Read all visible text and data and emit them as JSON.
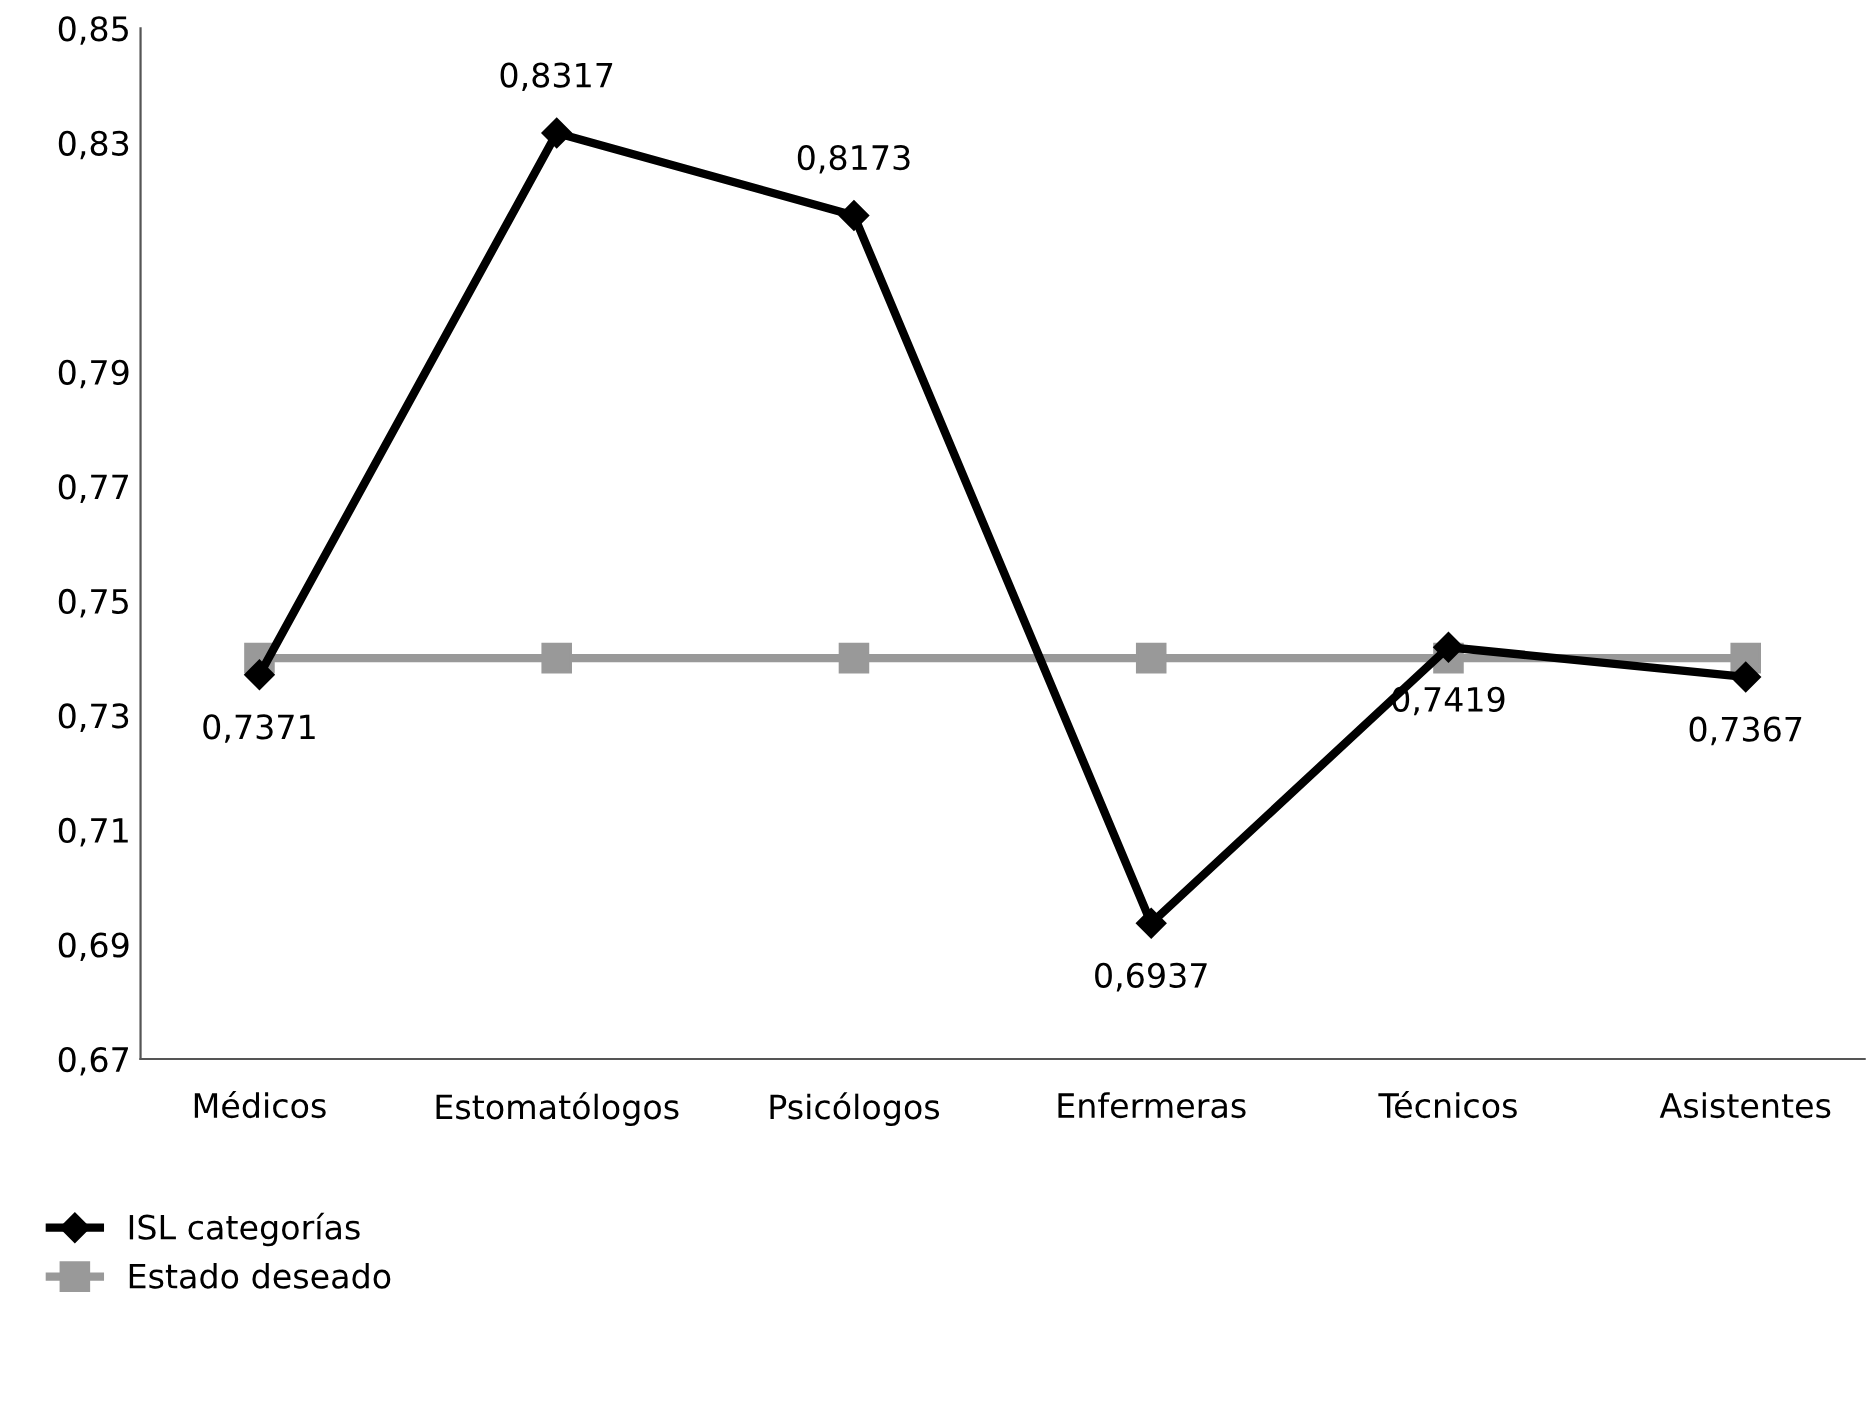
{
  "chart_data": {
    "type": "line",
    "categories": [
      "Médicos",
      "Estomatólogos",
      "Psicólogos",
      "Enfermeras",
      "Técnicos",
      "Asistentes"
    ],
    "series": [
      {
        "name": "ISL categorías",
        "color": "#000000",
        "marker": "diamond",
        "values": [
          0.7371,
          0.8317,
          0.8173,
          0.6937,
          0.7419,
          0.7367
        ],
        "value_labels": [
          "0,7371",
          "0,8317",
          "0,8173",
          "0,6937",
          "0,7419",
          "0,7367"
        ]
      },
      {
        "name": "Estado deseado",
        "color": "#999999",
        "marker": "square",
        "values": [
          0.74,
          0.74,
          0.74,
          0.74,
          0.74,
          0.74
        ]
      }
    ],
    "ylim": [
      0.67,
      0.85
    ],
    "yticks": [
      {
        "value": 0.67,
        "label": "0,67"
      },
      {
        "value": 0.69,
        "label": "0,69"
      },
      {
        "value": 0.71,
        "label": "0,71"
      },
      {
        "value": 0.73,
        "label": "0,73"
      },
      {
        "value": 0.75,
        "label": "0,75"
      },
      {
        "value": 0.77,
        "label": "0,77"
      },
      {
        "value": 0.79,
        "label": "0,79"
      },
      {
        "value": 0.83,
        "label": "0,83"
      },
      {
        "value": 0.85,
        "label": "0,85"
      }
    ],
    "grid": false,
    "legend": "bottom left",
    "line_style": "solid"
  }
}
